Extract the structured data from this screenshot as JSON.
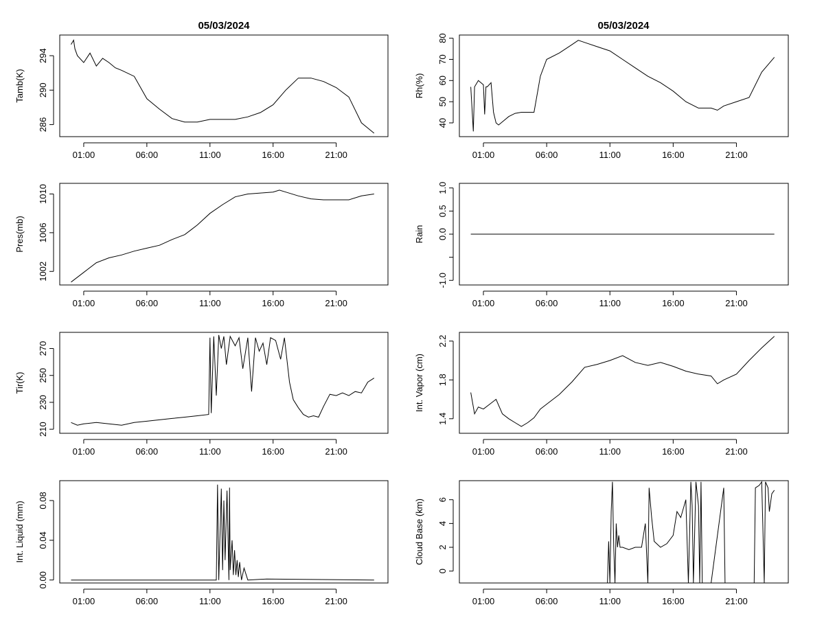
{
  "figure": {
    "left_title": "05/03/2024",
    "right_title": "05/03/2024"
  },
  "chart_data": [
    {
      "type": "line",
      "panel": "left-1",
      "title": "05/03/2024",
      "ylabel": "Tamb(K)",
      "xlabel": "",
      "xlim": [
        -0.9,
        25.1
      ],
      "ylim": [
        284.6,
        296.4
      ],
      "xticks": [
        1,
        6,
        11,
        16,
        21
      ],
      "xtick_labels": [
        "01:00",
        "06:00",
        "11:00",
        "16:00",
        "21:00"
      ],
      "yticks": [
        286,
        290,
        294
      ],
      "ytick_labels": [
        "286",
        "290",
        "294"
      ],
      "x": [
        0,
        0.2,
        0.3,
        0.5,
        1,
        1.5,
        2,
        2.5,
        3,
        3.5,
        4,
        5,
        6,
        7,
        8,
        9,
        10,
        11,
        12,
        13,
        14,
        15,
        16,
        17,
        18,
        19,
        20,
        21,
        22,
        23,
        24
      ],
      "y": [
        295.3,
        295.8,
        294.8,
        294.0,
        293.2,
        294.3,
        292.8,
        293.7,
        293.2,
        292.6,
        292.3,
        291.6,
        289.0,
        287.8,
        286.7,
        286.3,
        286.3,
        286.6,
        286.6,
        286.6,
        286.9,
        287.4,
        288.3,
        290.0,
        291.4,
        291.4,
        291.0,
        290.3,
        289.2,
        286.2,
        285.0
      ]
    },
    {
      "type": "line",
      "panel": "right-1",
      "title": "05/03/2024",
      "ylabel": "Rh(%)",
      "xlabel": "",
      "xlim": [
        -0.9,
        25.1
      ],
      "ylim": [
        33.5,
        81.5
      ],
      "xticks": [
        1,
        6,
        11,
        16,
        21
      ],
      "xtick_labels": [
        "01:00",
        "06:00",
        "11:00",
        "16:00",
        "21:00"
      ],
      "yticks": [
        40,
        50,
        60,
        70,
        80
      ],
      "ytick_labels": [
        "40",
        "50",
        "60",
        "70",
        "80"
      ],
      "x": [
        0,
        0.2,
        0.3,
        0.6,
        1,
        1.1,
        1.2,
        1.3,
        1.6,
        1.8,
        2.0,
        2.2,
        2.6,
        3,
        3.5,
        4,
        4.5,
        5,
        5.5,
        6,
        7,
        8,
        8.5,
        9,
        10,
        11,
        12,
        13,
        14,
        15,
        16,
        17,
        18,
        19,
        19.5,
        20,
        21,
        22,
        23,
        24
      ],
      "y": [
        57,
        36,
        57,
        60,
        58,
        44,
        57,
        57,
        59,
        45,
        40,
        39,
        41,
        43,
        44.5,
        45,
        45,
        45,
        62,
        70,
        73,
        77,
        79,
        78,
        76,
        74,
        70,
        66,
        62,
        59,
        55,
        50,
        47,
        47,
        46,
        48,
        50,
        52,
        64,
        71
      ]
    },
    {
      "type": "line",
      "panel": "left-2",
      "title": "",
      "ylabel": "Pres(mb)",
      "xlabel": "",
      "xlim": [
        -0.9,
        25.1
      ],
      "ylim": [
        1000.6,
        1011.1
      ],
      "xticks": [
        1,
        6,
        11,
        16,
        21
      ],
      "xtick_labels": [
        "01:00",
        "06:00",
        "11:00",
        "16:00",
        "21:00"
      ],
      "yticks": [
        1002,
        1006,
        1010
      ],
      "ytick_labels": [
        "1002",
        "1006",
        "1010"
      ],
      "x": [
        0,
        1,
        2,
        3,
        4,
        5,
        6,
        7,
        8,
        9,
        9.5,
        10,
        11,
        12,
        13,
        14,
        15,
        16,
        16.5,
        17,
        18,
        19,
        20,
        21,
        22,
        23,
        24
      ],
      "y": [
        1000.9,
        1001.9,
        1002.9,
        1003.4,
        1003.7,
        1004.1,
        1004.4,
        1004.7,
        1005.3,
        1005.8,
        1006.3,
        1006.8,
        1008.0,
        1008.9,
        1009.7,
        1010.0,
        1010.1,
        1010.2,
        1010.4,
        1010.2,
        1009.8,
        1009.5,
        1009.4,
        1009.4,
        1009.4,
        1009.8,
        1010.0
      ]
    },
    {
      "type": "line",
      "panel": "right-2",
      "title": "",
      "ylabel": "Rain",
      "xlabel": "",
      "xlim": [
        -0.9,
        25.1
      ],
      "ylim": [
        -1.1,
        1.1
      ],
      "xticks": [
        1,
        6,
        11,
        16,
        21
      ],
      "xtick_labels": [
        "01:00",
        "06:00",
        "11:00",
        "16:00",
        "21:00"
      ],
      "yticks": [
        -1.0,
        -0.5,
        0.0,
        0.5,
        1.0
      ],
      "ytick_labels": [
        "-1.0",
        "",
        "0.0",
        "0.5",
        "1.0"
      ],
      "x": [
        0,
        24
      ],
      "y": [
        0,
        0
      ]
    },
    {
      "type": "line",
      "panel": "left-3",
      "title": "",
      "ylabel": "Tir(K)",
      "xlabel": "",
      "xlim": [
        -0.9,
        25.1
      ],
      "ylim": [
        207,
        282
      ],
      "xticks": [
        1,
        6,
        11,
        16,
        21
      ],
      "xtick_labels": [
        "01:00",
        "06:00",
        "11:00",
        "16:00",
        "21:00"
      ],
      "yticks": [
        210,
        230,
        250,
        270
      ],
      "ytick_labels": [
        "210",
        "230",
        "250",
        "270"
      ],
      "x": [
        0,
        0.5,
        1,
        2,
        3,
        4,
        5,
        6,
        7,
        8,
        9,
        10,
        10.9,
        11.0,
        11.1,
        11.3,
        11.5,
        11.7,
        11.9,
        12.1,
        12.3,
        12.6,
        13,
        13.3,
        13.6,
        14,
        14.3,
        14.6,
        14.9,
        15.2,
        15.5,
        15.8,
        16.2,
        16.6,
        16.9,
        17.3,
        17.6,
        18,
        18.4,
        18.8,
        19.2,
        19.6,
        20,
        20.5,
        21,
        21.5,
        22,
        22.5,
        23,
        23.5,
        24
      ],
      "y": [
        215,
        213,
        214,
        215,
        214,
        213,
        215,
        216,
        217,
        218,
        219,
        220,
        221,
        278,
        222,
        279,
        235,
        280,
        270,
        279,
        258,
        279,
        272,
        278,
        255,
        278,
        238,
        278,
        268,
        274,
        258,
        278,
        276,
        262,
        278,
        245,
        232,
        226,
        221,
        219,
        220,
        219,
        227,
        236,
        235,
        237,
        235,
        238,
        237,
        245,
        248
      ]
    },
    {
      "type": "line",
      "panel": "right-3",
      "title": "",
      "ylabel": "Int. Vapor (cm)",
      "xlabel": "",
      "xlim": [
        -0.9,
        25.1
      ],
      "ylim": [
        1.25,
        2.29
      ],
      "xticks": [
        1,
        6,
        11,
        16,
        21
      ],
      "xtick_labels": [
        "01:00",
        "06:00",
        "11:00",
        "16:00",
        "21:00"
      ],
      "yticks": [
        1.4,
        1.8,
        2.2
      ],
      "ytick_labels": [
        "1.4",
        "1.8",
        "2.2"
      ],
      "x": [
        0,
        0.3,
        0.6,
        1,
        1.5,
        2,
        2.5,
        3,
        3.5,
        4,
        4.5,
        5,
        5.5,
        6,
        7,
        8,
        9,
        10,
        11,
        12,
        13,
        14,
        15,
        16,
        17,
        18,
        19,
        19.5,
        20,
        21,
        22,
        23,
        24
      ],
      "y": [
        1.67,
        1.45,
        1.52,
        1.5,
        1.55,
        1.6,
        1.45,
        1.4,
        1.36,
        1.32,
        1.36,
        1.41,
        1.5,
        1.55,
        1.65,
        1.78,
        1.93,
        1.96,
        2.0,
        2.05,
        1.98,
        1.95,
        1.98,
        1.94,
        1.89,
        1.86,
        1.84,
        1.76,
        1.8,
        1.86,
        2.0,
        2.13,
        2.25
      ]
    },
    {
      "type": "line",
      "panel": "left-4",
      "title": "",
      "ylabel": "Int. Liquid (mm)",
      "xlabel": "",
      "xlim": [
        -0.9,
        25.1
      ],
      "ylim": [
        -0.003,
        0.1
      ],
      "xticks": [
        1,
        6,
        11,
        16,
        21
      ],
      "xtick_labels": [
        "01:00",
        "06:00",
        "11:00",
        "16:00",
        "21:00"
      ],
      "yticks": [
        0.0,
        0.04,
        0.08
      ],
      "ytick_labels": [
        "0.00",
        "0.04",
        "0.08"
      ],
      "x": [
        0,
        11,
        11.5,
        11.6,
        11.7,
        11.9,
        12.0,
        12.1,
        12.2,
        12.35,
        12.5,
        12.55,
        12.6,
        12.75,
        12.85,
        12.95,
        13.05,
        13.15,
        13.25,
        13.35,
        13.5,
        13.7,
        14,
        15.5,
        24
      ],
      "y": [
        0,
        0,
        0,
        0.096,
        0,
        0.092,
        0.01,
        0.08,
        0.02,
        0.09,
        0,
        0.093,
        0.01,
        0.04,
        0.005,
        0.03,
        0.005,
        0.02,
        0.003,
        0.018,
        0,
        0.012,
        0,
        0.001,
        0
      ]
    },
    {
      "type": "line",
      "panel": "right-4",
      "title": "",
      "ylabel": "Cloud Base (km)",
      "xlabel": "",
      "xlim": [
        -0.9,
        25.1
      ],
      "ylim": [
        -1.0,
        7.6
      ],
      "xticks": [
        1,
        6,
        11,
        16,
        21
      ],
      "xtick_labels": [
        "01:00",
        "06:00",
        "11:00",
        "16:00",
        "21:00"
      ],
      "yticks": [
        0,
        2,
        4,
        6
      ],
      "ytick_labels": [
        "0",
        "2",
        "4",
        "6"
      ],
      "x": [
        0,
        10.8,
        10.9,
        11.0,
        11.1,
        11.2,
        11.3,
        11.4,
        11.5,
        11.6,
        11.7,
        11.8,
        12,
        12.5,
        13,
        13.5,
        13.8,
        14,
        14.1,
        14.3,
        14.5,
        15,
        15.5,
        16,
        16.3,
        16.6,
        17,
        17.2,
        17.4,
        17.5,
        17.6,
        17.8,
        18,
        18.1,
        18.2,
        18.3,
        18.6,
        18.8,
        19.0,
        20.0,
        20.1,
        20.2,
        21,
        22.4,
        22.5,
        22.8,
        23,
        23.2,
        23.3,
        23.5,
        23.6,
        23.8,
        24
      ],
      "y": [
        -1,
        -1,
        2.5,
        -1,
        5.0,
        7.5,
        2.0,
        -1,
        4.0,
        2.0,
        3.0,
        2.0,
        2.0,
        1.8,
        2.0,
        2.0,
        4.0,
        -1,
        7.0,
        4.5,
        2.5,
        2.0,
        2.3,
        3.0,
        5.0,
        4.5,
        6.0,
        -1,
        7.5,
        5.5,
        -1,
        7.5,
        5.5,
        -1,
        7.5,
        -1,
        -1,
        -1,
        -1,
        7.0,
        -1,
        -1,
        -1,
        -1,
        7.0,
        7.2,
        7.5,
        -1,
        7.5,
        7.0,
        5.0,
        6.5,
        6.8
      ]
    }
  ]
}
